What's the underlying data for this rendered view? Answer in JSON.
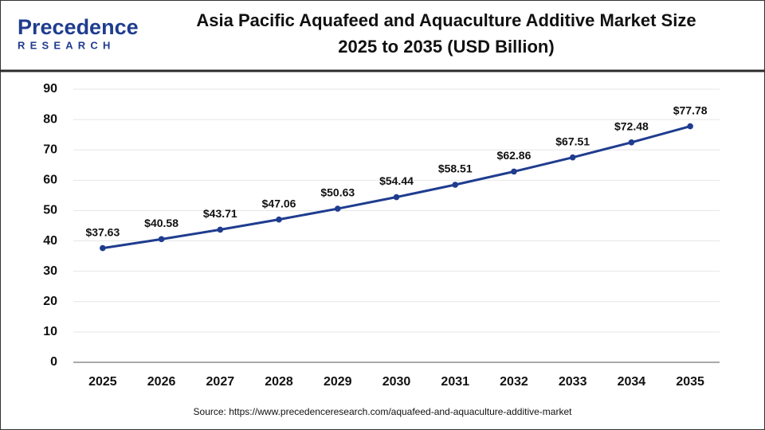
{
  "logo": {
    "name": "Precedence",
    "tagline": "RESEARCH"
  },
  "chart_data": {
    "type": "line",
    "title": [
      "Asia Pacific Aquafeed and Aquaculture Additive Market Size",
      "2025 to 2035 (USD Billion)"
    ],
    "categories": [
      "2025",
      "2026",
      "2027",
      "2028",
      "2029",
      "2030",
      "2031",
      "2032",
      "2033",
      "2034",
      "2035"
    ],
    "values": [
      37.63,
      40.58,
      43.71,
      47.06,
      50.63,
      54.44,
      58.51,
      62.86,
      67.51,
      72.48,
      77.78
    ],
    "value_labels": [
      "$37.63",
      "$40.58",
      "$43.71",
      "$47.06",
      "$50.63",
      "$54.44",
      "$58.51",
      "$62.86",
      "$67.51",
      "$72.48",
      "$77.78"
    ],
    "color": "#1f3c8f",
    "ylim": [
      0,
      90
    ],
    "yticks": [
      0,
      10,
      20,
      30,
      40,
      50,
      60,
      70,
      80,
      90
    ],
    "grid": true,
    "source": "Source: https://www.precedenceresearch.com/aquafeed-and-aquaculture-additive-market"
  }
}
